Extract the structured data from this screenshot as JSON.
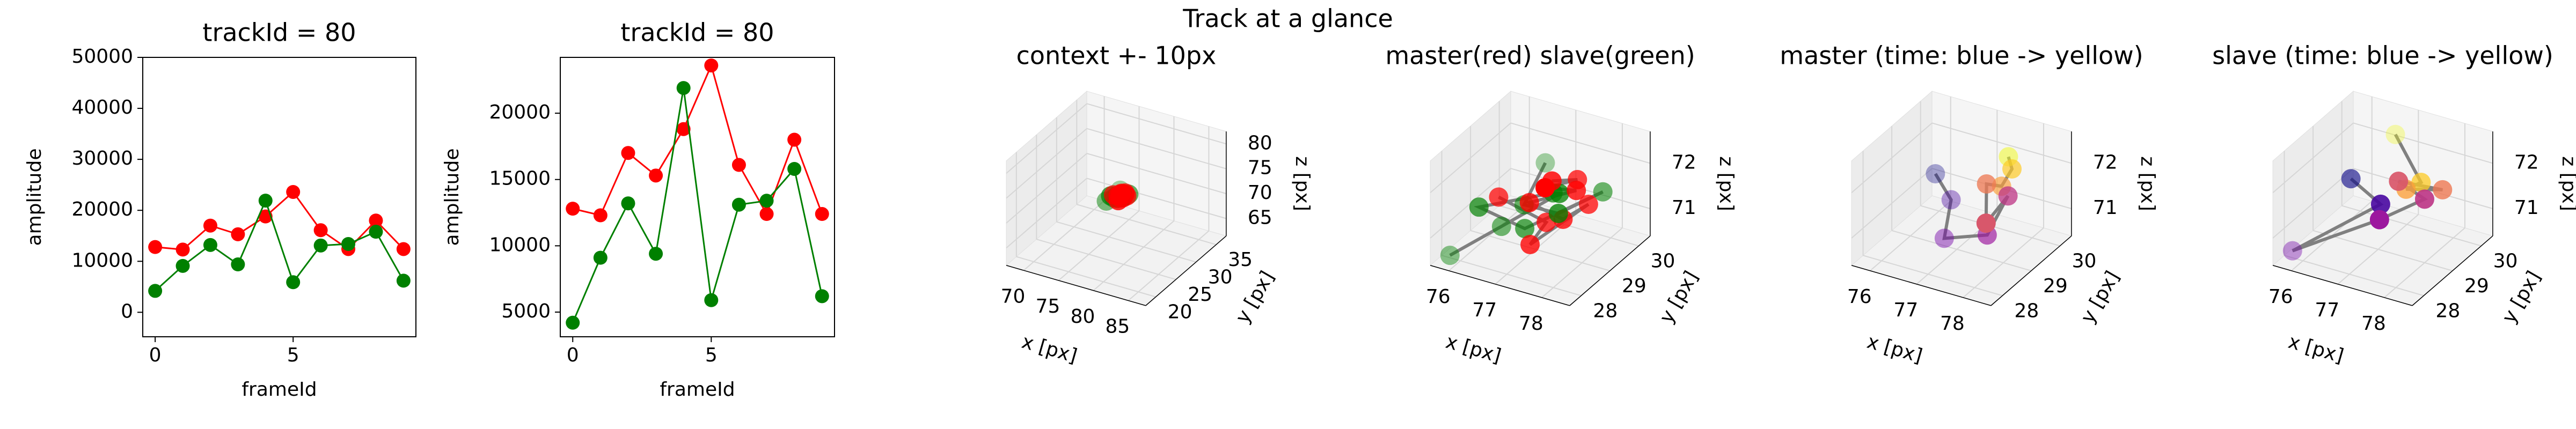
{
  "suptitle": "Track at a glance",
  "chart_data": [
    {
      "type": "line",
      "title": "trackId = 80",
      "xlabel": "frameId",
      "ylabel": "amplitude",
      "x": [
        0,
        1,
        2,
        3,
        4,
        5,
        6,
        7,
        8,
        9
      ],
      "series": [
        {
          "color": "#ff0000",
          "values": [
            12800,
            12300,
            17000,
            15300,
            18800,
            23600,
            16100,
            12400,
            18000,
            12400
          ]
        },
        {
          "color": "#008000",
          "values": [
            4200,
            9100,
            13200,
            9400,
            21900,
            5900,
            13100,
            13400,
            15800,
            6200
          ]
        }
      ],
      "xlim": [
        -0.45,
        9.45
      ],
      "xticks": [
        0,
        5
      ],
      "ylim": [
        -4800,
        50000
      ],
      "yticks": [
        0,
        10000,
        20000,
        30000,
        40000,
        50000
      ]
    },
    {
      "type": "line",
      "title": "trackId = 80",
      "xlabel": "frameId",
      "ylabel": "amplitude",
      "x": [
        0,
        1,
        2,
        3,
        4,
        5,
        6,
        7,
        8,
        9
      ],
      "series": [
        {
          "color": "#ff0000",
          "values": [
            12800,
            12300,
            17000,
            15300,
            18800,
            23600,
            16100,
            12400,
            18000,
            12400
          ]
        },
        {
          "color": "#008000",
          "values": [
            4200,
            9100,
            13200,
            9400,
            21900,
            5900,
            13100,
            13400,
            15800,
            6200
          ]
        }
      ],
      "xlim": [
        -0.45,
        9.45
      ],
      "xticks": [
        0,
        5
      ],
      "ylim": [
        3140,
        24210
      ],
      "yticks": [
        5000,
        10000,
        15000,
        20000
      ]
    },
    {
      "type": "scatter3d",
      "title": "context +- 10px",
      "xlabel": "x [px]",
      "ylabel": "y [px]",
      "zlabel": "z [px]",
      "line_color": "#808080",
      "series": [
        {
          "color": "#ff0000",
          "x": [
            77.6,
            77.9,
            77.7,
            78.0,
            77.3,
            77.9,
            78.2,
            77.5,
            77.6,
            76.7
          ],
          "y": [
            28.6,
            29.0,
            28.2,
            28.8,
            28.3,
            28.5,
            28.9,
            28.0,
            28.4,
            28.2
          ],
          "z": [
            72.3,
            72.2,
            72.4,
            72.1,
            71.9,
            71.6,
            71.8,
            71.2,
            71.5,
            71.9
          ]
        },
        {
          "color": "#008000",
          "x": [
            76.9,
            77.0,
            77.8,
            78.2,
            77.2,
            76.4,
            77.5,
            77.7,
            76.7,
            75.9
          ],
          "y": [
            29.5,
            28.6,
            28.5,
            29.4,
            28.3,
            28.0,
            28.8,
            28.7,
            28.3,
            27.8
          ],
          "z": [
            72.0,
            71.6,
            71.7,
            71.8,
            71.3,
            71.7,
            71.9,
            72.0,
            71.2,
            70.6
          ]
        }
      ],
      "xlim": [
        67.5,
        87.5
      ],
      "xticks": [
        70,
        75,
        80,
        85
      ],
      "ylim": [
        17.5,
        37.5
      ],
      "yticks": [
        20,
        25,
        30,
        35
      ],
      "zlim": [
        61.5,
        82.5
      ],
      "zticks": [
        65,
        70,
        75,
        80
      ]
    },
    {
      "type": "scatter3d",
      "title": "master(red) slave(green)",
      "xlabel": "x [px]",
      "ylabel": "y [px]",
      "zlabel": "z [px]",
      "line_color": "#808080",
      "series": [
        {
          "color": "#ff0000",
          "x": [
            77.6,
            77.9,
            77.7,
            78.0,
            77.3,
            77.9,
            78.2,
            77.5,
            77.6,
            76.7
          ],
          "y": [
            28.6,
            29.0,
            28.2,
            28.8,
            28.3,
            28.5,
            28.9,
            28.0,
            28.4,
            28.2
          ],
          "z": [
            72.3,
            72.2,
            72.4,
            72.1,
            71.9,
            71.6,
            71.8,
            71.2,
            71.5,
            71.9
          ]
        },
        {
          "color": "#008000",
          "x": [
            76.9,
            77.0,
            77.8,
            78.2,
            77.2,
            76.4,
            77.5,
            77.7,
            76.7,
            75.9
          ],
          "y": [
            29.5,
            28.6,
            28.5,
            29.4,
            28.3,
            28.0,
            28.8,
            28.7,
            28.3,
            27.8
          ],
          "z": [
            72.0,
            71.6,
            71.7,
            71.8,
            71.3,
            71.7,
            71.9,
            72.0,
            71.2,
            70.6
          ]
        }
      ],
      "xlim": [
        75.6,
        78.6
      ],
      "xticks": [
        76,
        77,
        78
      ],
      "ylim": [
        27.6,
        30.4
      ],
      "yticks": [
        28,
        29,
        30
      ],
      "zlim": [
        70.4,
        72.7
      ],
      "zticks": [
        71,
        72
      ]
    },
    {
      "type": "scatter3d",
      "title": "master (time: blue -> yellow)",
      "xlabel": "x [px]",
      "ylabel": "y [px]",
      "zlabel": "z [px]",
      "line_color": "#808080",
      "series": [
        {
          "colors": [
            "#0d0887",
            "#46039f",
            "#7201a8",
            "#9c179e",
            "#bd3786",
            "#d8576b",
            "#ed7953",
            "#fb9f3a",
            "#fdca26",
            "#f0f921"
          ],
          "x": [
            76.6,
            77.0,
            77.1,
            77.9,
            78.1,
            78.0,
            77.7,
            77.9,
            78.0,
            77.8
          ],
          "y": [
            28.9,
            28.8,
            28.4,
            28.6,
            29.0,
            28.4,
            28.9,
            29.1,
            29.3,
            29.5
          ],
          "z": [
            72.0,
            71.6,
            71.0,
            71.2,
            71.9,
            71.6,
            72.1,
            72.0,
            72.3,
            72.4
          ]
        }
      ],
      "xlim": [
        75.6,
        78.6
      ],
      "xticks": [
        76,
        77,
        78
      ],
      "ylim": [
        27.6,
        30.4
      ],
      "yticks": [
        28,
        29,
        30
      ],
      "zlim": [
        70.4,
        72.7
      ],
      "zticks": [
        71,
        72
      ]
    },
    {
      "type": "scatter3d",
      "title": "slave (time: blue -> yellow)",
      "xlabel": "x [px]",
      "ylabel": "y [px]",
      "zlabel": "z [px]",
      "line_color": "#808080",
      "series": [
        {
          "colors": [
            "#0d0887",
            "#46039f",
            "#7201a8",
            "#9c179e",
            "#bd3786",
            "#d8576b",
            "#ed7953",
            "#fb9f3a",
            "#fdca26",
            "#f0f921"
          ],
          "x": [
            76.6,
            77.3,
            75.9,
            77.4,
            78.0,
            77.5,
            78.2,
            77.6,
            77.8,
            77.0
          ],
          "y": [
            28.7,
            28.6,
            27.8,
            28.4,
            29.0,
            28.9,
            29.3,
            29.0,
            29.2,
            29.6
          ],
          "z": [
            72.0,
            71.7,
            70.7,
            71.5,
            71.8,
            72.1,
            71.9,
            71.9,
            72.0,
            72.6
          ]
        }
      ],
      "xlim": [
        75.6,
        78.6
      ],
      "xticks": [
        76,
        77,
        78
      ],
      "ylim": [
        27.6,
        30.4
      ],
      "yticks": [
        28,
        29,
        30
      ],
      "zlim": [
        70.4,
        72.7
      ],
      "zticks": [
        71,
        72
      ]
    }
  ]
}
